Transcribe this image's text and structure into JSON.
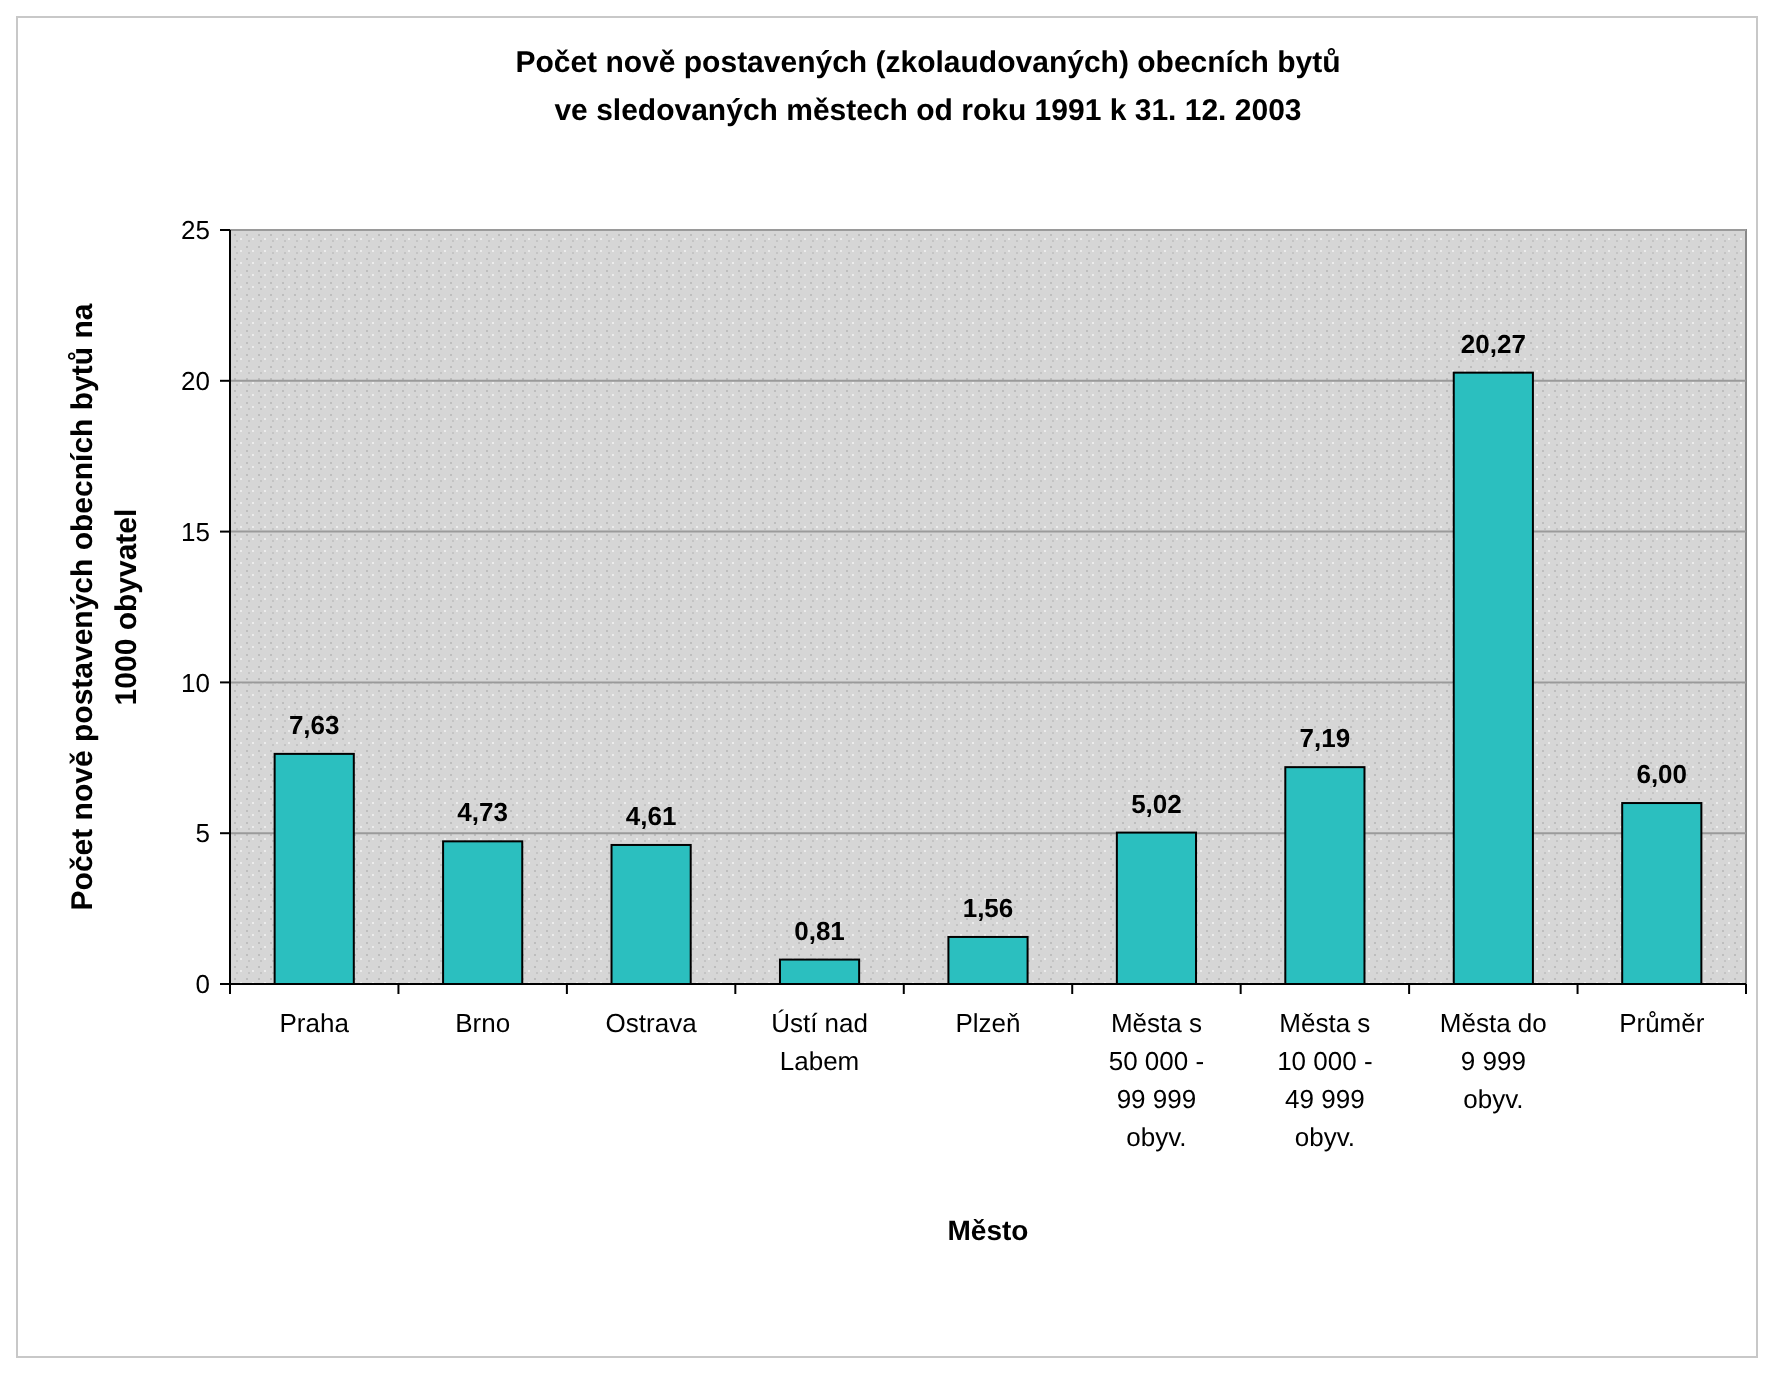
{
  "chart_data": {
    "type": "bar",
    "title": "Počet nově postavených (zkolaudovaných) obecních bytů\nve sledovaných městech od roku 1991 k 31. 12. 2003",
    "xlabel": "Město",
    "ylabel": "Počet nově postavených obecních bytů na\n1000 obyvatel",
    "categories": [
      "Praha",
      "Brno",
      "Ostrava",
      "Ústí nad\nLabem",
      "Plzeň",
      "Města s\n50 000 -\n99 999\nobyv.",
      "Města s\n10 000 -\n49 999\nobyv.",
      "Města do\n9 999\nobyv.",
      "Průměr"
    ],
    "values": [
      7.63,
      4.73,
      4.61,
      0.81,
      1.56,
      5.02,
      7.19,
      20.27,
      6.0
    ],
    "value_labels": [
      "7,63",
      "4,73",
      "4,61",
      "0,81",
      "1,56",
      "5,02",
      "7,19",
      "20,27",
      "6,00"
    ],
    "color": "#2bbfbf",
    "ylim": [
      0,
      25
    ],
    "yticks": [
      0,
      5,
      10,
      15,
      20,
      25
    ],
    "grid": "y"
  }
}
